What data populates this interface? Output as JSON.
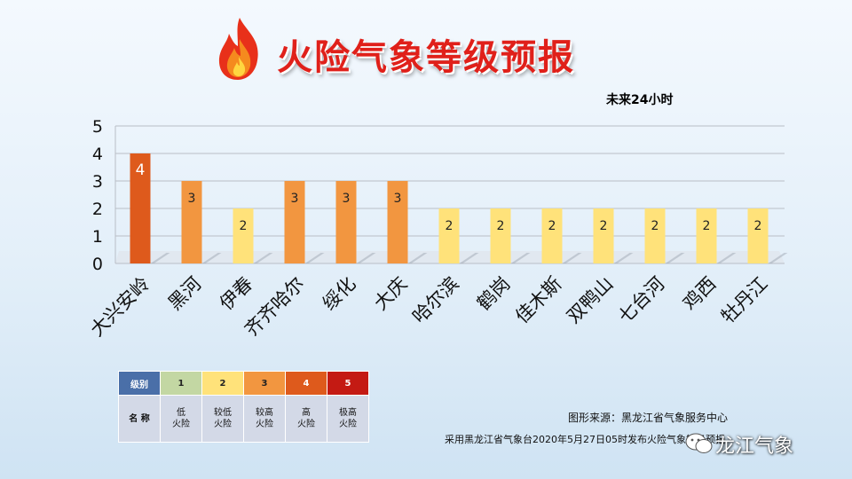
{
  "title": "火险气象等级预报",
  "period": "未来24小时",
  "chart_data": {
    "type": "bar",
    "categories": [
      "大兴安岭",
      "黑河",
      "伊春",
      "齐齐哈尔",
      "绥化",
      "大庆",
      "哈尔滨",
      "鹤岗",
      "佳木斯",
      "双鸭山",
      "七台河",
      "鸡西",
      "牡丹江"
    ],
    "values": [
      4,
      3,
      2,
      3,
      3,
      3,
      2,
      2,
      2,
      2,
      2,
      2,
      2
    ],
    "ylim": [
      0,
      5
    ],
    "yticks": [
      "0",
      "1",
      "2",
      "3",
      "4",
      "5"
    ],
    "grid": true,
    "level_colors": {
      "2": "#ffe27a",
      "3": "#f29640",
      "4": "#de5a1c"
    }
  },
  "legend": {
    "header_label": "级别",
    "desc_label": "名 称",
    "levels": [
      {
        "level": "1",
        "name_l1": "低",
        "name_l2": "火险",
        "color": "#c3d7a3"
      },
      {
        "level": "2",
        "name_l1": "较低",
        "name_l2": "火险",
        "color": "#ffe27a"
      },
      {
        "level": "3",
        "name_l1": "较高",
        "name_l2": "火险",
        "color": "#f29640"
      },
      {
        "level": "4",
        "name_l1": "高",
        "name_l2": "火险",
        "color": "#de5a1c"
      },
      {
        "level": "5",
        "name_l1": "极高",
        "name_l2": "火险",
        "color": "#c41a13"
      }
    ]
  },
  "source": "图形来源：黑龙江省气象服务中心",
  "note": "采用黑龙江省气象台2020年5月27日05时发布火险气象等级预报",
  "watermark": "龙江气象"
}
